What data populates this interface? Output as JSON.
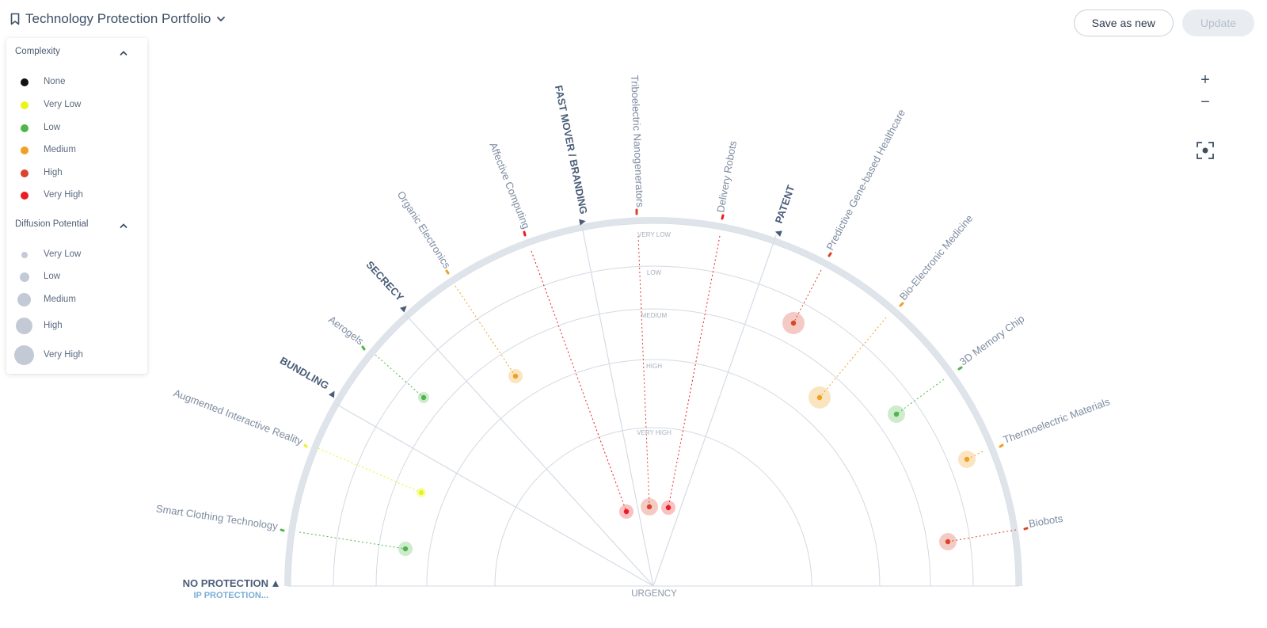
{
  "header": {
    "title": "Technology Protection Portfolio"
  },
  "toolbar": {
    "save_new_label": "Save as new",
    "update_label": "Update"
  },
  "zoom": {
    "in_label": "+",
    "out_label": "−"
  },
  "legend": {
    "complexity": {
      "title": "Complexity",
      "items": [
        {
          "label": "None",
          "color": "#111111"
        },
        {
          "label": "Very Low",
          "color": "#e8f51c"
        },
        {
          "label": "Low",
          "color": "#4fb64a"
        },
        {
          "label": "Medium",
          "color": "#f0a022"
        },
        {
          "label": "High",
          "color": "#d9442a"
        },
        {
          "label": "Very High",
          "color": "#ec1c24"
        }
      ]
    },
    "diffusion": {
      "title": "Diffusion Potential",
      "items": [
        {
          "label": "Very Low",
          "size": "very-low"
        },
        {
          "label": "Low",
          "size": "low"
        },
        {
          "label": "Medium",
          "size": "medium"
        },
        {
          "label": "High",
          "size": "high"
        },
        {
          "label": "Very High",
          "size": "very-high"
        }
      ]
    }
  },
  "radar": {
    "ring_labels": [
      "VERY LOW",
      "LOW",
      "MEDIUM",
      "HIGH",
      "VERY HIGH"
    ],
    "center_label": "URGENCY",
    "sectors": [
      "NO PROTECTION",
      "BUNDLING",
      "SECRECY",
      "FAST MOVER / BRANDING",
      "PATENT"
    ],
    "bottom_sublabel": "IP PROTECTION...",
    "technologies": [
      "Smart Clothing Technology",
      "Augmented Interactive Reality",
      "Aerogels",
      "Organic Electronics",
      "Affective Computing",
      "Triboelectric Nanogenerators",
      "Delivery Robots",
      "Predictive Gene-based Healthcare",
      "Bio-Electronic Medicine",
      "3D Memory Chip",
      "Thermoelectric Materials",
      "Biobots"
    ]
  }
}
